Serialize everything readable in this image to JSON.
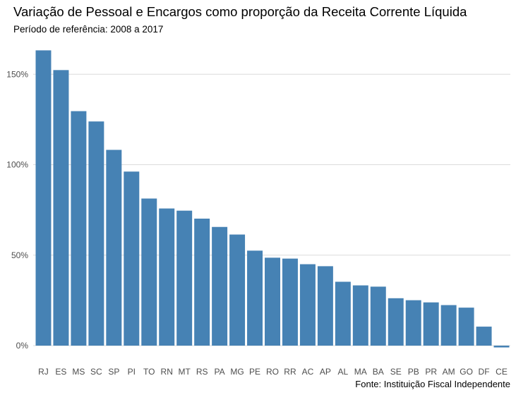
{
  "chart_data": {
    "type": "bar",
    "title": "Variação de Pessoal e Encargos como proporção da Receita Corrente Líquida",
    "subtitle": "Período de referência: 2008 a 2017",
    "caption": "Fonte: Instituição Fiscal Independente",
    "xlabel": "",
    "ylabel": "",
    "ylim": [
      -0.01,
      1.67
    ],
    "yticks": [
      0,
      0.5,
      1.0,
      1.5
    ],
    "ytick_labels": [
      "0%",
      "50%",
      "100%",
      "150%"
    ],
    "grid": true,
    "bar_color": "#4682b4",
    "grid_color": "#dcdcdc",
    "categories": [
      "RJ",
      "ES",
      "MS",
      "SC",
      "SP",
      "PI",
      "TO",
      "RN",
      "MT",
      "RS",
      "PA",
      "MG",
      "PE",
      "RO",
      "RR",
      "AC",
      "AP",
      "AL",
      "MA",
      "BA",
      "SE",
      "PB",
      "PR",
      "AM",
      "GO",
      "DF",
      "CE"
    ],
    "values": [
      1.632,
      1.523,
      1.296,
      1.239,
      1.082,
      0.962,
      0.813,
      0.758,
      0.746,
      0.702,
      0.656,
      0.614,
      0.525,
      0.486,
      0.481,
      0.45,
      0.439,
      0.353,
      0.333,
      0.326,
      0.262,
      0.251,
      0.239,
      0.224,
      0.21,
      0.105,
      -0.01
    ]
  }
}
